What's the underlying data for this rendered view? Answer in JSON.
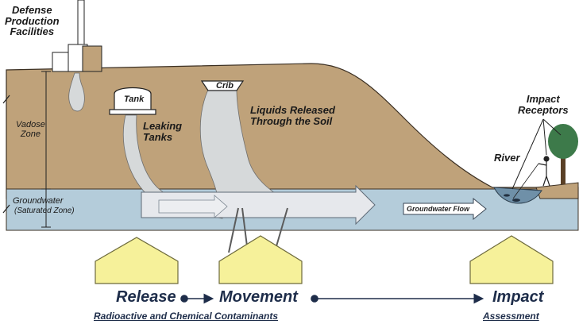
{
  "labels": {
    "facilities": [
      "Defense",
      "Production",
      "Facilities"
    ],
    "tank": "Tank",
    "crib": "Crib",
    "leaking_tanks": [
      "Leaking",
      "Tanks"
    ],
    "liquids": [
      "Liquids Released",
      "Through the Soil"
    ],
    "vadose": [
      "Vadose",
      "Zone"
    ],
    "groundwater": "Groundwater",
    "saturated": "(Saturated Zone)",
    "groundwater_flow": "Groundwater Flow",
    "impact_receptors": [
      "Impact",
      "Receptors"
    ],
    "river": "River"
  },
  "process": {
    "release": "Release",
    "movement": "Movement",
    "impact": "Impact",
    "contaminants": "Radioactive and Chemical Contaminants",
    "assessment": "Assessment"
  },
  "colors": {
    "soil": "#bfa27a",
    "groundwater": "#b4ccda",
    "plume": "#d6d9da",
    "arrow_fill": "#f6f19a",
    "arrow_stroke": "#6d6a3c",
    "process_line": "#1e2d4a",
    "tree": "#3d7a4a"
  }
}
